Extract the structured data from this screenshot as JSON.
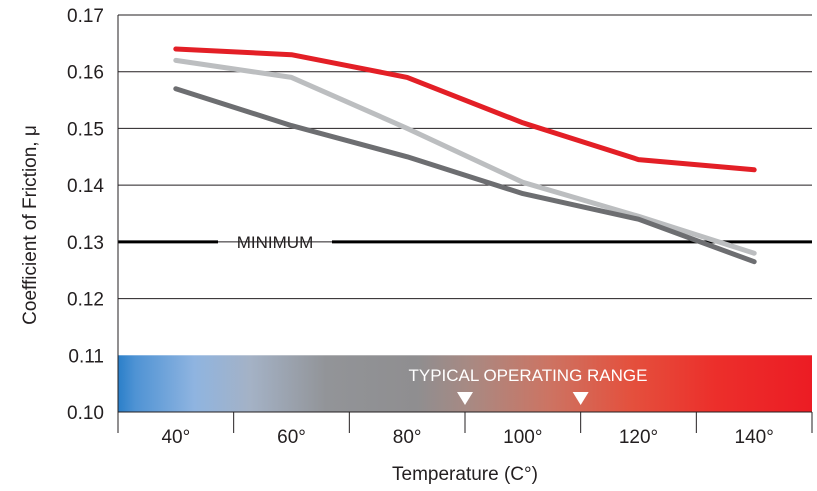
{
  "chart_data": {
    "type": "line",
    "title": "",
    "xlabel": "Temperature (C°)",
    "ylabel": "Coefficient of Friction, μ",
    "categories": [
      "40°",
      "60°",
      "80°",
      "100°",
      "120°",
      "140°"
    ],
    "x": [
      40,
      60,
      80,
      100,
      120,
      140
    ],
    "xlim": [
      30,
      150
    ],
    "ylim": [
      0.1,
      0.17
    ],
    "yticks": [
      "0.10",
      "0.11",
      "0.12",
      "0.13",
      "0.14",
      "0.15",
      "0.16",
      "0.17"
    ],
    "grid": true,
    "series": [
      {
        "color": "#e31f26",
        "values": [
          0.164,
          0.163,
          0.159,
          0.151,
          0.1445,
          0.1427
        ]
      },
      {
        "color": "#bcbec0",
        "values": [
          0.162,
          0.159,
          0.15,
          0.1405,
          0.1345,
          0.128
        ]
      },
      {
        "color": "#6d6e71",
        "values": [
          0.157,
          0.1505,
          0.145,
          0.1385,
          0.134,
          0.1265
        ]
      }
    ],
    "minimum_line": {
      "label": "MINIMUM",
      "value": 0.13
    },
    "operating_range": {
      "label": "TYPICAL OPERATING RANGE",
      "band_ylim": [
        0.1,
        0.11
      ],
      "markers_x": [
        90,
        110
      ]
    }
  }
}
